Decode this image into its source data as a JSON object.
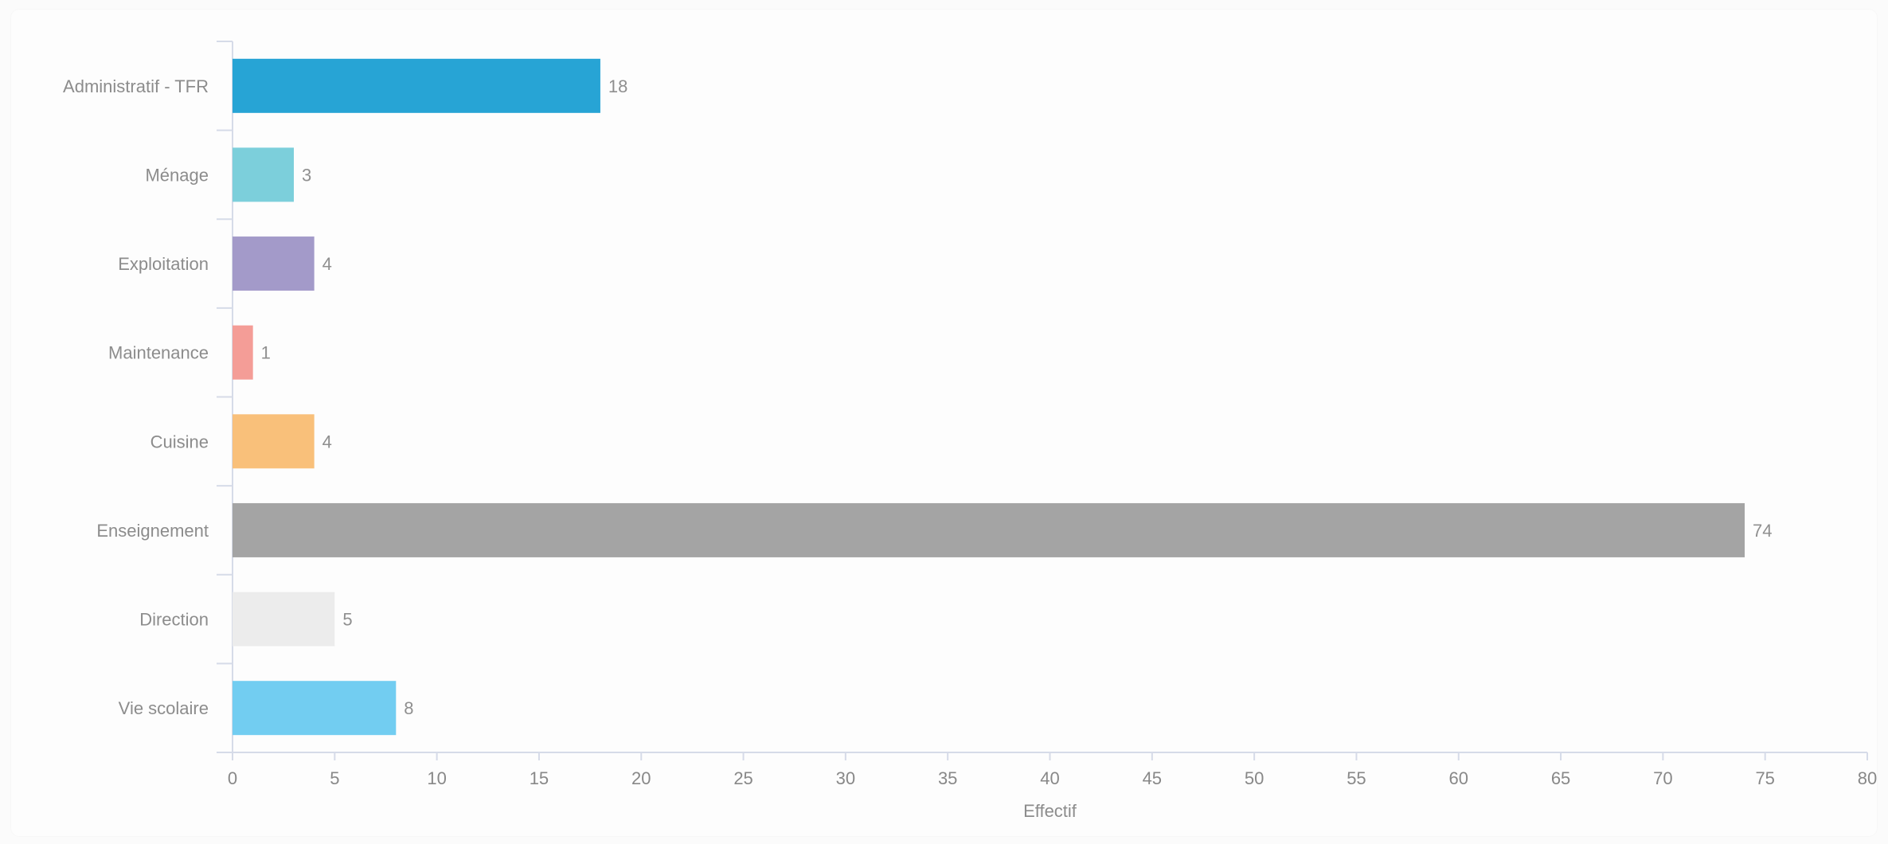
{
  "chart_data": {
    "type": "bar",
    "orientation": "horizontal",
    "categories": [
      "Administratif - TFR",
      "Ménage",
      "Exploitation",
      "Maintenance",
      "Cuisine",
      "Enseignement",
      "Direction",
      "Vie scolaire"
    ],
    "values": [
      18,
      3,
      4,
      1,
      4,
      74,
      5,
      8
    ],
    "colors": [
      "#27a4d5",
      "#7ccfdb",
      "#a39ac9",
      "#f49d97",
      "#f9c07a",
      "#a4a4a4",
      "#ececec",
      "#72cdf1"
    ],
    "xlabel": "Effectif",
    "ylabel": "",
    "xlim": [
      0,
      80
    ],
    "xticks": [
      0,
      5,
      10,
      15,
      20,
      25,
      30,
      35,
      40,
      45,
      50,
      55,
      60,
      65,
      70,
      75,
      80
    ],
    "grid": false,
    "legend": false,
    "data_labels": true
  }
}
